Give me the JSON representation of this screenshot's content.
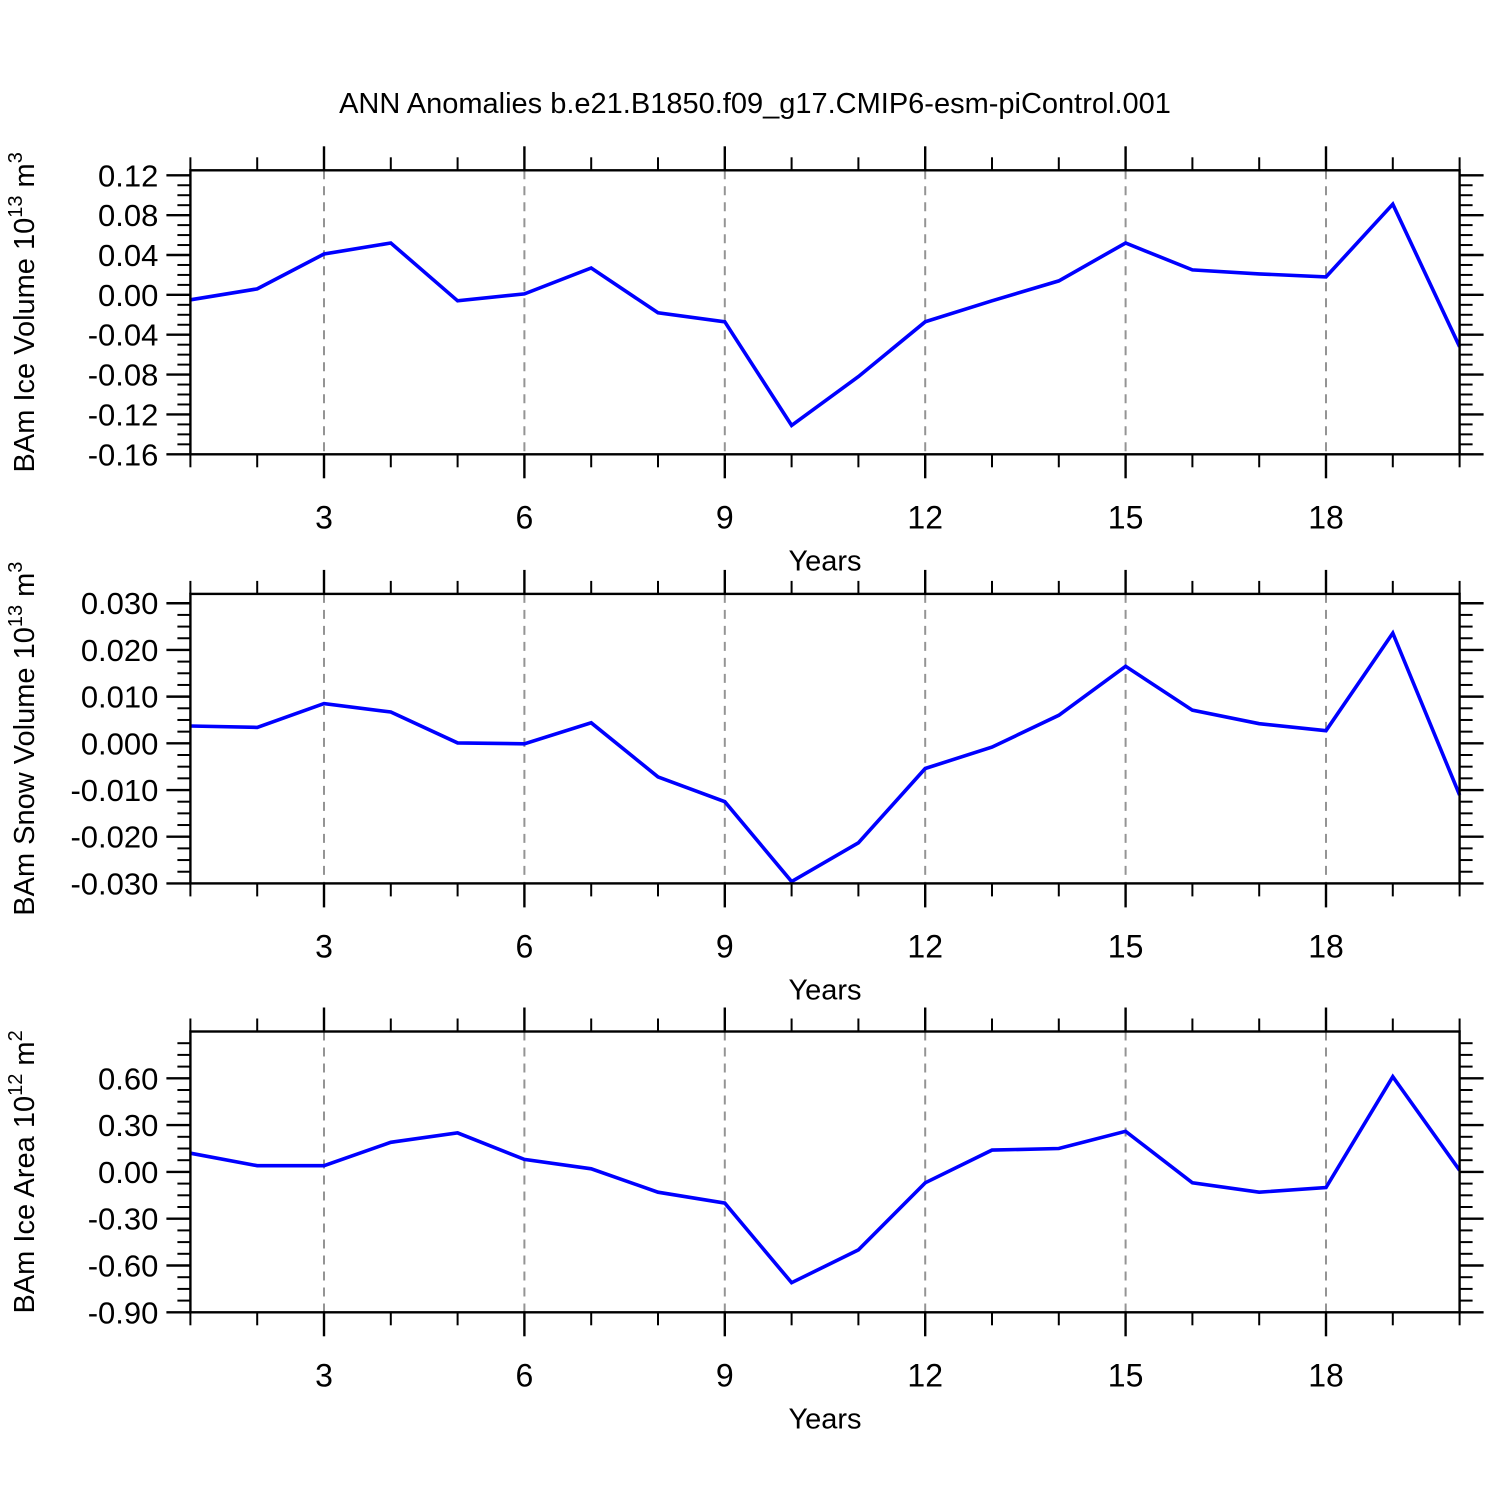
{
  "title": "ANN Anomalies b.e21.B1850.f09_g17.CMIP6-esm-piControl.001",
  "style": {
    "line_color": "#0000ff",
    "axis_color": "#000000",
    "grid_color": "#949494",
    "background": "#ffffff"
  },
  "chart_data": [
    {
      "type": "line",
      "name": "ice-volume",
      "ylabel": {
        "base": "BAm Ice Volume 10",
        "exp": "13",
        "unit": " m",
        "unit_exp": "3"
      },
      "xlabel": "Years",
      "x": [
        1,
        2,
        3,
        4,
        5,
        6,
        7,
        8,
        9,
        10,
        11,
        12,
        13,
        14,
        15,
        16,
        17,
        18,
        19,
        20
      ],
      "y": [
        -0.005,
        0.006,
        0.041,
        0.052,
        -0.006,
        0.001,
        0.027,
        -0.018,
        -0.027,
        -0.131,
        -0.082,
        -0.027,
        -0.006,
        0.014,
        0.052,
        0.025,
        0.021,
        0.018,
        0.091,
        -0.052
      ],
      "xlim": [
        1,
        20
      ],
      "ylim": [
        -0.16,
        0.125
      ],
      "xtick_values": [
        3,
        6,
        9,
        12,
        15,
        18
      ],
      "xtick_labels": [
        "3",
        "6",
        "9",
        "12",
        "15",
        "18"
      ],
      "x_minor_step": 1,
      "ytick_values": [
        0.12,
        0.08,
        0.04,
        0.0,
        -0.04,
        -0.08,
        -0.12,
        -0.16
      ],
      "ytick_labels": [
        "0.12",
        "0.08",
        "0.04",
        "0.00",
        "-0.04",
        "-0.08",
        "-0.12",
        "-0.16"
      ],
      "y_minor_step": 0.01,
      "grid": "vertical-dashed",
      "legend": "none"
    },
    {
      "type": "line",
      "name": "snow-volume",
      "ylabel": {
        "base": "BAm Snow Volume 10",
        "exp": "13",
        "unit": " m",
        "unit_exp": "3"
      },
      "xlabel": "Years",
      "x": [
        1,
        2,
        3,
        4,
        5,
        6,
        7,
        8,
        9,
        10,
        11,
        12,
        13,
        14,
        15,
        16,
        17,
        18,
        19,
        20
      ],
      "y": [
        0.0037,
        0.0034,
        0.0085,
        0.0067,
        0.0001,
        -0.0001,
        0.0044,
        -0.0072,
        -0.0125,
        -0.0296,
        -0.0213,
        -0.0054,
        -0.0008,
        0.006,
        0.0165,
        0.0071,
        0.0042,
        0.0027,
        0.0236,
        -0.0111
      ],
      "xlim": [
        1,
        20
      ],
      "ylim": [
        -0.03,
        0.032
      ],
      "xtick_values": [
        3,
        6,
        9,
        12,
        15,
        18
      ],
      "xtick_labels": [
        "3",
        "6",
        "9",
        "12",
        "15",
        "18"
      ],
      "x_minor_step": 1,
      "ytick_values": [
        0.03,
        0.02,
        0.01,
        0.0,
        -0.01,
        -0.02,
        -0.03
      ],
      "ytick_labels": [
        "0.030",
        "0.020",
        "0.010",
        "0.000",
        "-0.010",
        "-0.020",
        "-0.030"
      ],
      "y_minor_step": 0.0025,
      "grid": "vertical-dashed",
      "legend": "none"
    },
    {
      "type": "line",
      "name": "ice-area",
      "ylabel": {
        "base": "BAm Ice Area 10",
        "exp": "12",
        "unit": " m",
        "unit_exp": "2"
      },
      "xlabel": "Years",
      "x": [
        1,
        2,
        3,
        4,
        5,
        6,
        7,
        8,
        9,
        10,
        11,
        12,
        13,
        14,
        15,
        16,
        17,
        18,
        19,
        20
      ],
      "y": [
        0.12,
        0.04,
        0.04,
        0.19,
        0.25,
        0.08,
        0.02,
        -0.13,
        -0.2,
        -0.71,
        -0.5,
        -0.07,
        0.14,
        0.15,
        0.26,
        -0.07,
        -0.13,
        -0.1,
        0.61,
        0.01
      ],
      "xlim": [
        1,
        20
      ],
      "ylim": [
        -0.9,
        0.9
      ],
      "xtick_values": [
        3,
        6,
        9,
        12,
        15,
        18
      ],
      "xtick_labels": [
        "3",
        "6",
        "9",
        "12",
        "15",
        "18"
      ],
      "x_minor_step": 1,
      "ytick_values": [
        0.6,
        0.3,
        0.0,
        -0.3,
        -0.6,
        -0.9
      ],
      "ytick_labels": [
        "0.60",
        "0.30",
        "0.00",
        "-0.30",
        "-0.60",
        "-0.90"
      ],
      "y_minor_step": 0.075,
      "grid": "vertical-dashed",
      "legend": "none"
    }
  ]
}
